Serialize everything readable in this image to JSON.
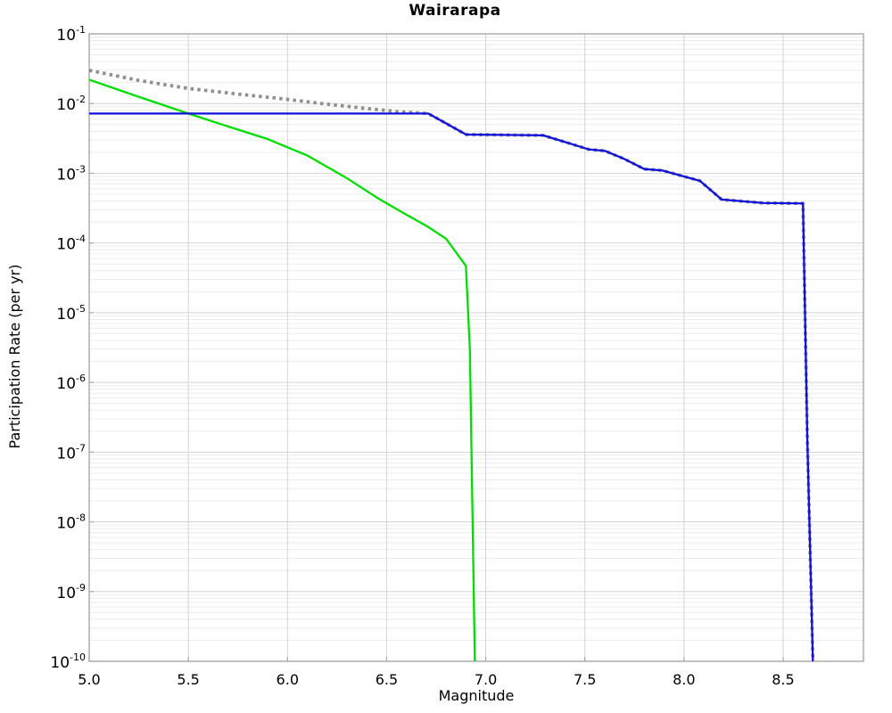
{
  "page": {
    "title": "Wairarapa"
  },
  "chart_data": {
    "type": "line",
    "title": "Wairarapa",
    "xlabel": "Magnitude",
    "ylabel": "Participation Rate (per yr)",
    "x_scale": "linear",
    "y_scale": "log",
    "xlim": [
      5.0,
      8.905
    ],
    "ylim": [
      1e-10,
      0.1
    ],
    "grid": true,
    "legend": false,
    "x_ticks": [
      5.0,
      5.5,
      6.0,
      6.5,
      7.0,
      7.5,
      8.0,
      8.5
    ],
    "x_tick_labels": [
      "5.0",
      "5.5",
      "6.0",
      "6.5",
      "7.0",
      "7.5",
      "8.0",
      "8.5"
    ],
    "y_tick_base": "10",
    "y_tick_exponents": [
      -1,
      -2,
      -3,
      -4,
      -5,
      -6,
      -7,
      -8,
      -9,
      -10
    ],
    "colors": {
      "blue_line": "#1111dd",
      "green_line": "#00dd00",
      "gray_dotted": "#8f8f8f",
      "grid_major": "#d4d4d4",
      "grid_minor": "#ececec",
      "frame": "#a8a8a8"
    },
    "series": [
      {
        "name": "dotted-gray-total",
        "color": "#8f8f8f",
        "line_style": "dotted",
        "line_width": 3.8,
        "points": [
          [
            5.0,
            0.03
          ],
          [
            5.25,
            0.0215
          ],
          [
            5.5,
            0.0165
          ],
          [
            5.75,
            0.0137
          ],
          [
            6.0,
            0.0115
          ],
          [
            6.2,
            0.0098
          ],
          [
            6.4,
            0.0085
          ],
          [
            6.55,
            0.0077
          ],
          [
            6.71,
            0.0072
          ],
          [
            6.8,
            0.0052
          ],
          [
            6.9,
            0.0036
          ],
          [
            7.1,
            0.00355
          ],
          [
            7.29,
            0.0035
          ],
          [
            7.42,
            0.0027
          ],
          [
            7.52,
            0.0022
          ],
          [
            7.6,
            0.0021
          ],
          [
            7.7,
            0.0016
          ],
          [
            7.8,
            0.00115
          ],
          [
            7.89,
            0.0011
          ],
          [
            8.08,
            0.00078
          ],
          [
            8.19,
            0.00042
          ],
          [
            8.4,
            0.000375
          ],
          [
            8.6,
            0.00037
          ],
          [
            8.622,
            1.5e-07
          ],
          [
            8.65,
            1e-10
          ]
        ]
      },
      {
        "name": "solid-green",
        "color": "#00dd00",
        "line_style": "solid",
        "line_width": 2.3,
        "points": [
          [
            5.0,
            0.022
          ],
          [
            5.25,
            0.0125
          ],
          [
            5.5,
            0.0072
          ],
          [
            5.7,
            0.0047
          ],
          [
            5.9,
            0.0031
          ],
          [
            6.1,
            0.0018
          ],
          [
            6.3,
            0.00085
          ],
          [
            6.45,
            0.00045
          ],
          [
            6.57,
            0.000285
          ],
          [
            6.71,
            0.00017
          ],
          [
            6.8,
            0.000115
          ],
          [
            6.9,
            4.7e-05
          ],
          [
            6.92,
            2.9e-06
          ],
          [
            6.945,
            1e-10
          ]
        ]
      },
      {
        "name": "solid-blue",
        "color": "#1111dd",
        "line_style": "solid",
        "line_width": 2.3,
        "points": [
          [
            5.0,
            0.0072
          ],
          [
            6.71,
            0.0072
          ],
          [
            6.8,
            0.0052
          ],
          [
            6.9,
            0.0036
          ],
          [
            7.1,
            0.00355
          ],
          [
            7.29,
            0.0035
          ],
          [
            7.42,
            0.0027
          ],
          [
            7.52,
            0.0022
          ],
          [
            7.6,
            0.0021
          ],
          [
            7.7,
            0.0016
          ],
          [
            7.8,
            0.00115
          ],
          [
            7.89,
            0.0011
          ],
          [
            8.08,
            0.00078
          ],
          [
            8.19,
            0.00042
          ],
          [
            8.4,
            0.000375
          ],
          [
            8.6,
            0.00037
          ],
          [
            8.622,
            1.5e-07
          ],
          [
            8.65,
            1e-10
          ]
        ]
      }
    ]
  }
}
